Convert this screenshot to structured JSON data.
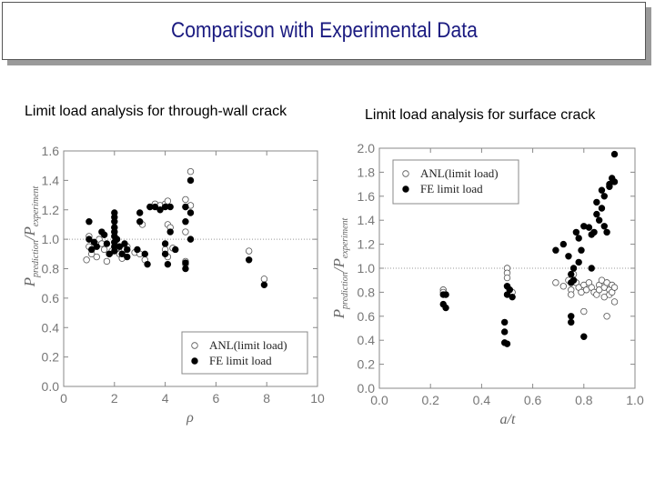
{
  "header": {
    "title": "Comparison with Experimental Data"
  },
  "panels": {
    "left_label": "Limit load analysis for through-wall crack",
    "right_label": "Limit load analysis for surface crack"
  },
  "colors": {
    "open_marker": "#ffffff",
    "filled_marker": "#000000",
    "axis": "#888888",
    "reference_line": "#999999"
  },
  "chart_data": [
    {
      "type": "scatter",
      "xlabel": "ρ",
      "ylabel": "P prediction / P experiment",
      "ylabel_parts": {
        "main1": "P",
        "sub1": "prediction",
        "slash": "/",
        "main2": "P",
        "sub2": "experiment"
      },
      "xlim": [
        0,
        10
      ],
      "ylim": [
        0.0,
        1.6
      ],
      "xticks": [
        0,
        2,
        4,
        6,
        8,
        10
      ],
      "yticks": [
        "0.0",
        "0.2",
        "0.4",
        "0.6",
        "0.8",
        "1.0",
        "1.2",
        "1.4",
        "1.6"
      ],
      "reference_y": 1.0,
      "legend": {
        "position": "bottom-right"
      },
      "series": [
        {
          "name": "ANL(limit load)",
          "marker": "open",
          "points": [
            [
              0.9,
              0.86
            ],
            [
              1.0,
              1.02
            ],
            [
              1.0,
              0.95
            ],
            [
              1.1,
              0.9
            ],
            [
              1.3,
              0.88
            ],
            [
              1.4,
              1.0
            ],
            [
              1.5,
              0.97
            ],
            [
              1.6,
              0.93
            ],
            [
              1.7,
              0.85
            ],
            [
              1.8,
              0.9
            ],
            [
              1.9,
              0.92
            ],
            [
              2.0,
              1.08
            ],
            [
              2.0,
              1.05
            ],
            [
              2.0,
              0.98
            ],
            [
              2.1,
              0.94
            ],
            [
              2.2,
              0.9
            ],
            [
              2.3,
              0.87
            ],
            [
              2.4,
              0.93
            ],
            [
              2.5,
              0.95
            ],
            [
              2.8,
              0.91
            ],
            [
              3.0,
              0.9
            ],
            [
              3.1,
              1.1
            ],
            [
              3.2,
              0.86
            ],
            [
              3.4,
              1.22
            ],
            [
              3.6,
              1.24
            ],
            [
              3.8,
              1.23
            ],
            [
              4.0,
              1.24
            ],
            [
              4.1,
              1.26
            ],
            [
              4.1,
              1.1
            ],
            [
              4.2,
              1.08
            ],
            [
              4.0,
              0.93
            ],
            [
              4.1,
              0.88
            ],
            [
              4.3,
              0.94
            ],
            [
              4.8,
              1.27
            ],
            [
              4.8,
              1.22
            ],
            [
              4.8,
              1.05
            ],
            [
              4.8,
              0.85
            ],
            [
              4.8,
              0.83
            ],
            [
              5.0,
              1.46
            ],
            [
              5.0,
              1.23
            ],
            [
              7.3,
              0.92
            ],
            [
              7.9,
              0.73
            ]
          ]
        },
        {
          "name": "FE limit load",
          "marker": "filled",
          "points": [
            [
              1.0,
              1.12
            ],
            [
              1.0,
              1.0
            ],
            [
              1.1,
              0.93
            ],
            [
              1.2,
              0.98
            ],
            [
              1.3,
              0.95
            ],
            [
              1.5,
              1.05
            ],
            [
              1.6,
              1.03
            ],
            [
              1.7,
              0.97
            ],
            [
              1.8,
              0.9
            ],
            [
              2.0,
              1.18
            ],
            [
              2.0,
              1.15
            ],
            [
              2.0,
              1.12
            ],
            [
              2.0,
              1.08
            ],
            [
              2.0,
              1.05
            ],
            [
              2.0,
              1.02
            ],
            [
              2.0,
              0.98
            ],
            [
              2.0,
              0.95
            ],
            [
              2.0,
              0.92
            ],
            [
              2.1,
              1.0
            ],
            [
              2.2,
              0.95
            ],
            [
              2.3,
              0.9
            ],
            [
              2.4,
              0.97
            ],
            [
              2.5,
              0.93
            ],
            [
              2.5,
              0.88
            ],
            [
              2.9,
              0.93
            ],
            [
              3.0,
              1.12
            ],
            [
              3.0,
              1.18
            ],
            [
              3.2,
              0.9
            ],
            [
              3.3,
              0.83
            ],
            [
              3.4,
              1.22
            ],
            [
              3.6,
              1.22
            ],
            [
              3.8,
              1.2
            ],
            [
              4.0,
              1.22
            ],
            [
              4.2,
              1.22
            ],
            [
              4.2,
              1.05
            ],
            [
              4.0,
              0.97
            ],
            [
              4.0,
              0.9
            ],
            [
              4.1,
              0.83
            ],
            [
              4.4,
              0.93
            ],
            [
              4.8,
              1.22
            ],
            [
              4.8,
              1.12
            ],
            [
              4.8,
              0.84
            ],
            [
              4.8,
              0.8
            ],
            [
              5.0,
              1.4
            ],
            [
              5.0,
              1.18
            ],
            [
              5.0,
              1.0
            ],
            [
              7.3,
              0.86
            ],
            [
              7.9,
              0.69
            ]
          ]
        }
      ]
    },
    {
      "type": "scatter",
      "xlabel": "a/t",
      "ylabel": "P prediction / P experiment",
      "ylabel_parts": {
        "main1": "P",
        "sub1": "prediction",
        "slash": "/",
        "main2": "P",
        "sub2": "experiment"
      },
      "xlim": [
        0.0,
        1.0
      ],
      "ylim": [
        0.0,
        2.0
      ],
      "xticks": [
        "0.0",
        "0.2",
        "0.4",
        "0.6",
        "0.8",
        "1.0"
      ],
      "yticks": [
        "0.0",
        "0.2",
        "0.4",
        "0.6",
        "0.8",
        "1.0",
        "1.2",
        "1.4",
        "1.6",
        "1.8",
        "2.0"
      ],
      "reference_y": 1.0,
      "legend": {
        "position": "top-left"
      },
      "series": [
        {
          "name": "ANL(limit load)",
          "marker": "open",
          "points": [
            [
              0.25,
              0.82
            ],
            [
              0.25,
              0.8
            ],
            [
              0.26,
              0.78
            ],
            [
              0.5,
              1.0
            ],
            [
              0.5,
              0.96
            ],
            [
              0.5,
              0.92
            ],
            [
              0.5,
              0.85
            ],
            [
              0.51,
              0.82
            ],
            [
              0.52,
              0.8
            ],
            [
              0.69,
              0.88
            ],
            [
              0.72,
              0.85
            ],
            [
              0.74,
              0.9
            ],
            [
              0.75,
              0.82
            ],
            [
              0.75,
              0.78
            ],
            [
              0.76,
              0.95
            ],
            [
              0.77,
              0.88
            ],
            [
              0.78,
              0.84
            ],
            [
              0.79,
              0.8
            ],
            [
              0.8,
              0.86
            ],
            [
              0.8,
              0.64
            ],
            [
              0.81,
              0.82
            ],
            [
              0.82,
              0.88
            ],
            [
              0.83,
              0.84
            ],
            [
              0.84,
              0.8
            ],
            [
              0.85,
              0.78
            ],
            [
              0.86,
              0.86
            ],
            [
              0.86,
              0.82
            ],
            [
              0.87,
              0.9
            ],
            [
              0.88,
              0.84
            ],
            [
              0.88,
              0.76
            ],
            [
              0.89,
              0.88
            ],
            [
              0.89,
              0.6
            ],
            [
              0.9,
              0.82
            ],
            [
              0.9,
              0.78
            ],
            [
              0.91,
              0.86
            ],
            [
              0.91,
              0.8
            ],
            [
              0.92,
              0.84
            ],
            [
              0.92,
              0.72
            ]
          ]
        },
        {
          "name": "FE limit load",
          "marker": "filled",
          "points": [
            [
              0.25,
              0.78
            ],
            [
              0.25,
              0.7
            ],
            [
              0.26,
              0.67
            ],
            [
              0.26,
              0.78
            ],
            [
              0.49,
              0.55
            ],
            [
              0.49,
              0.47
            ],
            [
              0.49,
              0.38
            ],
            [
              0.5,
              0.37
            ],
            [
              0.5,
              0.78
            ],
            [
              0.51,
              0.82
            ],
            [
              0.52,
              0.76
            ],
            [
              0.5,
              0.85
            ],
            [
              0.69,
              1.15
            ],
            [
              0.72,
              1.2
            ],
            [
              0.74,
              1.1
            ],
            [
              0.75,
              0.95
            ],
            [
              0.75,
              0.88
            ],
            [
              0.75,
              0.6
            ],
            [
              0.75,
              0.55
            ],
            [
              0.76,
              0.9
            ],
            [
              0.76,
              1.0
            ],
            [
              0.77,
              1.3
            ],
            [
              0.78,
              1.05
            ],
            [
              0.78,
              1.25
            ],
            [
              0.79,
              1.15
            ],
            [
              0.8,
              1.35
            ],
            [
              0.8,
              0.43
            ],
            [
              0.82,
              1.34
            ],
            [
              0.83,
              1.28
            ],
            [
              0.84,
              1.3
            ],
            [
              0.85,
              1.55
            ],
            [
              0.85,
              1.45
            ],
            [
              0.86,
              1.4
            ],
            [
              0.87,
              1.65
            ],
            [
              0.87,
              1.5
            ],
            [
              0.88,
              1.6
            ],
            [
              0.88,
              1.35
            ],
            [
              0.89,
              1.3
            ],
            [
              0.9,
              1.68
            ],
            [
              0.9,
              1.7
            ],
            [
              0.91,
              1.75
            ],
            [
              0.92,
              1.72
            ],
            [
              0.92,
              1.95
            ],
            [
              0.83,
              1.0
            ]
          ]
        }
      ]
    }
  ]
}
